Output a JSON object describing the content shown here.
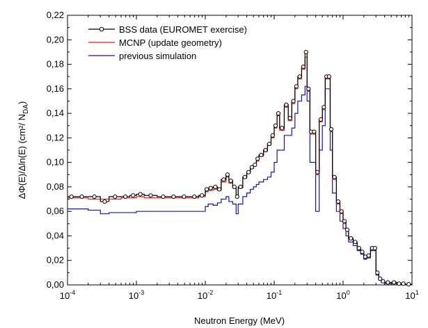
{
  "chart_data": {
    "type": "step",
    "x_label": "Neutron Energy (MeV)",
    "y_label": "ΔΦ(E)/Δln(E) (cm²/ N",
    "y_label_sub": "DA",
    "y_label_end": ")",
    "log_x": true,
    "xlim": [
      0.0001,
      10
    ],
    "xticks": [
      {
        "value": 0.0001,
        "label": "10",
        "exponent": "-4"
      },
      {
        "value": 0.001,
        "label": "10",
        "exponent": "-3"
      },
      {
        "value": 0.01,
        "label": "10",
        "exponent": "-2"
      },
      {
        "value": 0.1,
        "label": "10",
        "exponent": "-1"
      },
      {
        "value": 1,
        "label": "10",
        "exponent": "0"
      },
      {
        "value": 10,
        "label": "10",
        "exponent": "1"
      }
    ],
    "ylim": [
      0,
      0.22
    ],
    "yticks": [
      {
        "value": 0,
        "label": "0,00"
      },
      {
        "value": 0.02,
        "label": "0,02"
      },
      {
        "value": 0.04,
        "label": "0,04"
      },
      {
        "value": 0.06,
        "label": "0,06"
      },
      {
        "value": 0.08,
        "label": "0,08"
      },
      {
        "value": 0.1,
        "label": "0,10"
      },
      {
        "value": 0.12,
        "label": "0,12"
      },
      {
        "value": 0.14,
        "label": "0,14"
      },
      {
        "value": 0.16,
        "label": "0,16"
      },
      {
        "value": 0.18,
        "label": "0,18"
      },
      {
        "value": 0.2,
        "label": "0,20"
      },
      {
        "value": 0.22,
        "label": "0,22"
      }
    ],
    "legend": "upper-left",
    "x": [
      0.0001,
      0.00013,
      0.0002,
      0.0003,
      0.0004,
      0.0006,
      0.0008,
      0.001,
      0.0013,
      0.002,
      0.003,
      0.004,
      0.006,
      0.008,
      0.01,
      0.011,
      0.013,
      0.015,
      0.017,
      0.02,
      0.022,
      0.025,
      0.028,
      0.03,
      0.035,
      0.04,
      0.045,
      0.05,
      0.055,
      0.06,
      0.07,
      0.08,
      0.09,
      0.1,
      0.11,
      0.12,
      0.14,
      0.16,
      0.18,
      0.2,
      0.22,
      0.25,
      0.28,
      0.3,
      0.33,
      0.36,
      0.4,
      0.45,
      0.5,
      0.55,
      0.6,
      0.65,
      0.7,
      0.8,
      0.9,
      1.0,
      1.1,
      1.2,
      1.4,
      1.6,
      1.8,
      2.0,
      2.2,
      2.5,
      2.8,
      3.0,
      3.3,
      3.6,
      4.0,
      5.0,
      6.0,
      7.0,
      8.0,
      10.0
    ],
    "series": [
      {
        "name": "BSS data (EUROMET exercise)",
        "color": "#000000",
        "markers": true,
        "values": [
          0.072,
          0.072,
          0.072,
          0.068,
          0.072,
          0.072,
          0.073,
          0.074,
          0.073,
          0.072,
          0.072,
          0.072,
          0.072,
          0.073,
          0.078,
          0.079,
          0.08,
          0.078,
          0.086,
          0.09,
          0.085,
          0.08,
          0.072,
          0.08,
          0.088,
          0.092,
          0.096,
          0.098,
          0.103,
          0.106,
          0.11,
          0.115,
          0.122,
          0.13,
          0.14,
          0.128,
          0.147,
          0.136,
          0.15,
          0.162,
          0.17,
          0.178,
          0.19,
          0.16,
          0.125,
          0.125,
          0.092,
          0.135,
          0.145,
          0.17,
          0.17,
          0.127,
          0.088,
          0.068,
          0.06,
          0.052,
          0.045,
          0.038,
          0.035,
          0.03,
          0.027,
          0.023,
          0.024,
          0.03,
          0.03,
          0.01,
          0.005,
          0.003,
          0.002,
          0.002,
          0.001,
          0.001,
          0.0005,
          0
        ]
      },
      {
        "name": "MCNP (update geometry)",
        "color": "#e02020",
        "markers": false,
        "values": [
          0.071,
          0.071,
          0.07,
          0.07,
          0.07,
          0.071,
          0.071,
          0.072,
          0.071,
          0.071,
          0.071,
          0.071,
          0.071,
          0.072,
          0.076,
          0.077,
          0.078,
          0.077,
          0.084,
          0.088,
          0.083,
          0.079,
          0.071,
          0.079,
          0.087,
          0.091,
          0.095,
          0.097,
          0.101,
          0.105,
          0.109,
          0.114,
          0.12,
          0.128,
          0.138,
          0.126,
          0.145,
          0.134,
          0.148,
          0.16,
          0.168,
          0.176,
          0.186,
          0.158,
          0.123,
          0.123,
          0.09,
          0.133,
          0.143,
          0.168,
          0.168,
          0.125,
          0.086,
          0.066,
          0.058,
          0.05,
          0.044,
          0.037,
          0.034,
          0.029,
          0.026,
          0.022,
          0.023,
          0.031,
          0.029,
          0.009,
          0.005,
          0.003,
          0.002,
          0.002,
          0.001,
          0.001,
          0.0005,
          0
        ]
      },
      {
        "name": "previous simulation",
        "color": "#1010d0",
        "markers": false,
        "values": [
          0.062,
          0.062,
          0.061,
          0.058,
          0.059,
          0.059,
          0.059,
          0.06,
          0.06,
          0.06,
          0.06,
          0.06,
          0.06,
          0.06,
          0.064,
          0.066,
          0.065,
          0.067,
          0.07,
          0.072,
          0.068,
          0.066,
          0.058,
          0.066,
          0.072,
          0.075,
          0.078,
          0.08,
          0.082,
          0.084,
          0.086,
          0.088,
          0.092,
          0.1,
          0.11,
          0.11,
          0.122,
          0.122,
          0.128,
          0.14,
          0.15,
          0.155,
          0.162,
          0.15,
          0.1,
          0.1,
          0.06,
          0.11,
          0.13,
          0.16,
          0.16,
          0.11,
          0.075,
          0.06,
          0.052,
          0.046,
          0.04,
          0.035,
          0.032,
          0.028,
          0.025,
          0.021,
          0.022,
          0.028,
          0.028,
          0.008,
          0.004,
          0.002,
          0.001,
          0.001,
          0.001,
          0.0005,
          0.0003,
          0
        ]
      }
    ]
  }
}
